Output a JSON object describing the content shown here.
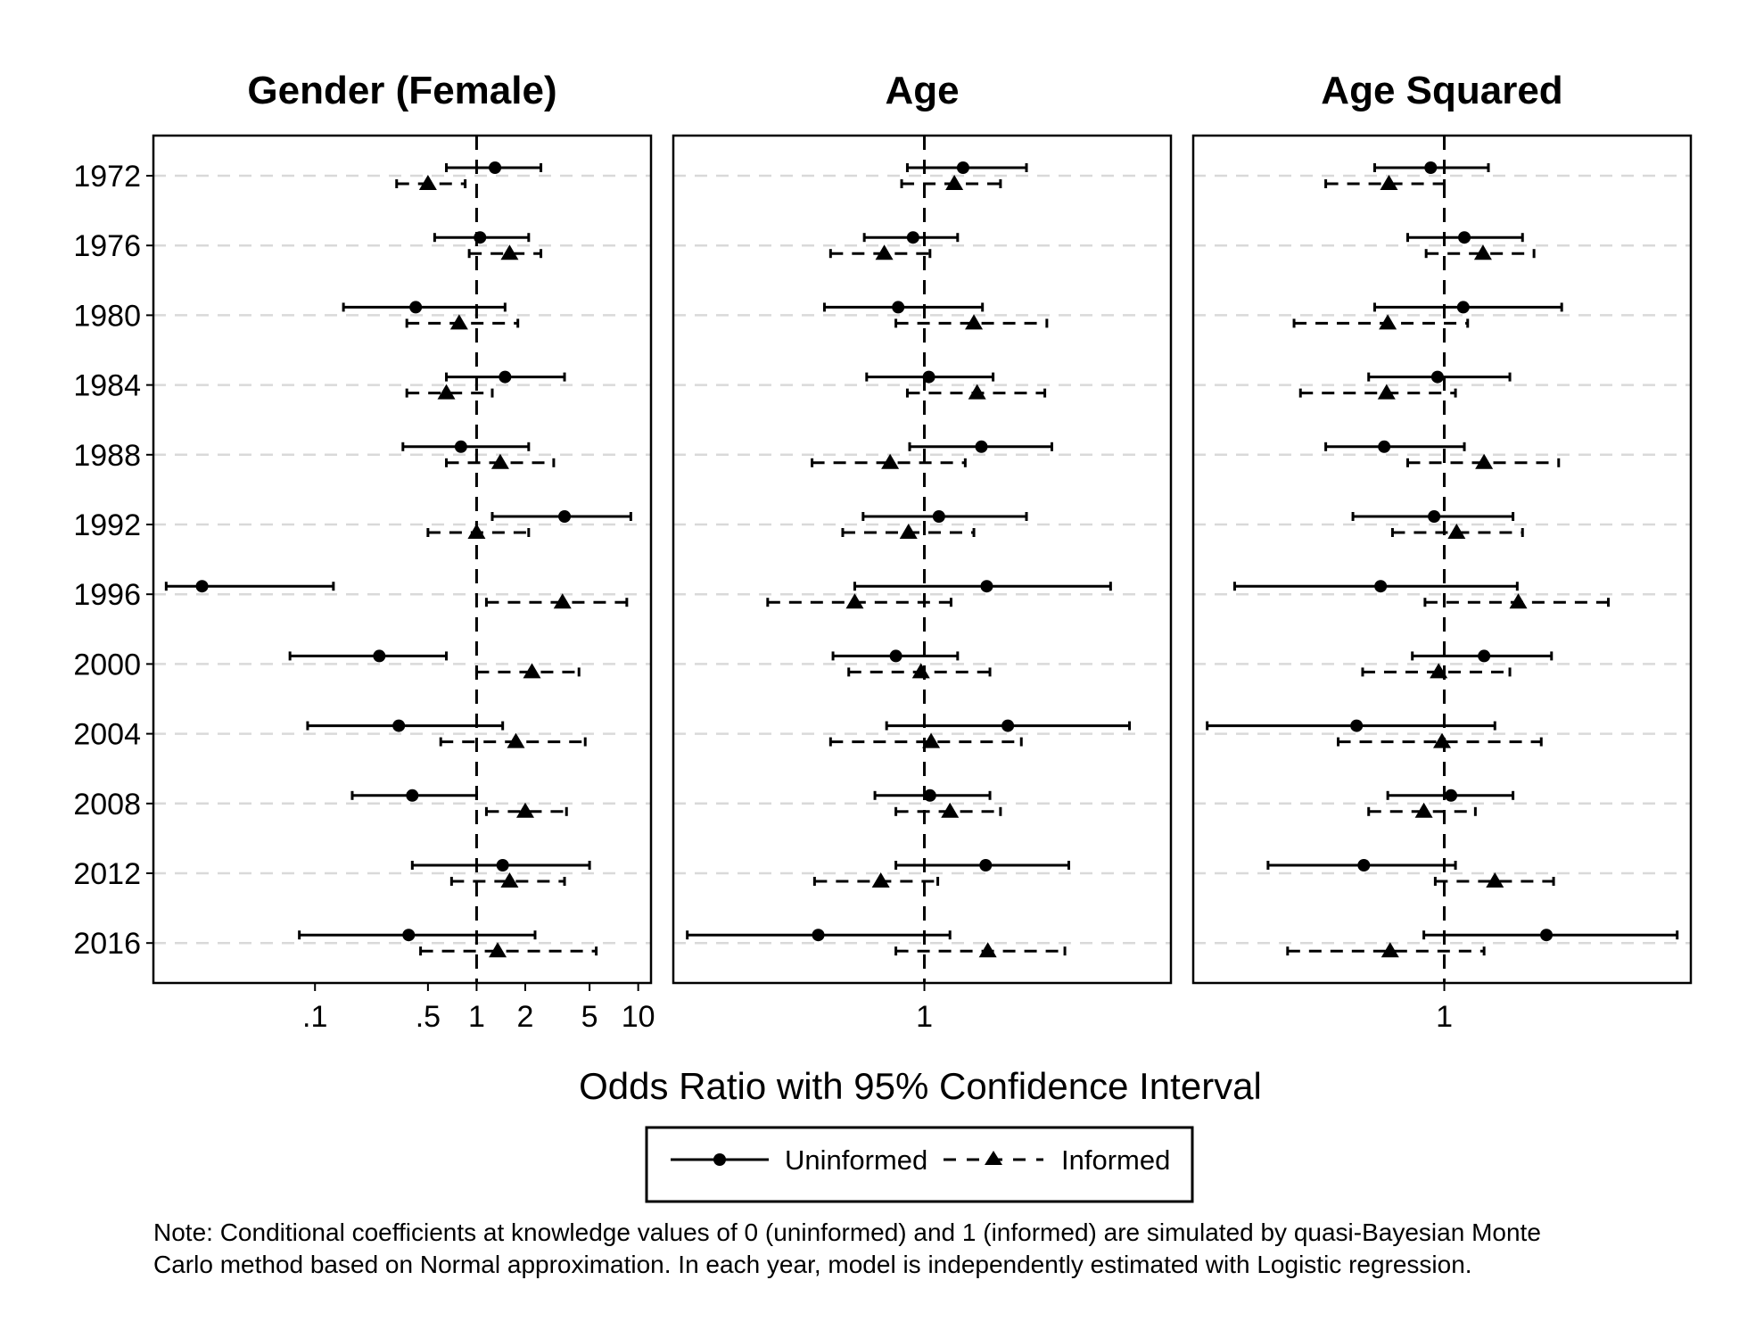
{
  "chart_data": {
    "type": "scatter",
    "subtype": "forest-plot",
    "xlabel": "Odds Ratio with 95% Confidence Interval",
    "years": [
      "1972",
      "1976",
      "1980",
      "1984",
      "1988",
      "1992",
      "1996",
      "2000",
      "2004",
      "2008",
      "2012",
      "2016"
    ],
    "legend": {
      "placement": "bottom",
      "entries": [
        "Uninformed",
        "Informed"
      ]
    },
    "grid": {
      "horizontal": true,
      "style": "dashed-light-gray"
    },
    "reference_line": 1,
    "panels": [
      {
        "title": "Gender (Female)",
        "scale": "log",
        "xlim": [
          0.01,
          12
        ],
        "xticks": [
          {
            "value": 0.1,
            "label": ".1"
          },
          {
            "value": 0.5,
            "label": ".5"
          },
          {
            "value": 1,
            "label": "1"
          },
          {
            "value": 2,
            "label": "2"
          },
          {
            "value": 5,
            "label": "5"
          },
          {
            "value": 10,
            "label": "10"
          }
        ],
        "series": [
          {
            "name": "Uninformed",
            "marker": "circle",
            "line": "solid",
            "points": [
              [
                1.3,
                0.65,
                2.5
              ],
              [
                1.05,
                0.55,
                2.1
              ],
              [
                0.42,
                0.15,
                1.5
              ],
              [
                1.5,
                0.65,
                3.5
              ],
              [
                0.8,
                0.35,
                2.1
              ],
              [
                3.5,
                1.25,
                9.0
              ],
              [
                0.02,
                0.012,
                0.13
              ],
              [
                0.25,
                0.07,
                0.65
              ],
              [
                0.33,
                0.09,
                1.45
              ],
              [
                0.4,
                0.17,
                1.0
              ],
              [
                1.45,
                0.4,
                5.0
              ],
              [
                0.38,
                0.08,
                2.3
              ]
            ]
          },
          {
            "name": "Informed",
            "marker": "triangle",
            "line": "dashed",
            "points": [
              [
                0.5,
                0.32,
                0.85
              ],
              [
                1.6,
                0.9,
                2.5
              ],
              [
                0.78,
                0.37,
                1.8
              ],
              [
                0.65,
                0.37,
                1.25
              ],
              [
                1.4,
                0.65,
                3.0
              ],
              [
                1.0,
                0.5,
                2.1
              ],
              [
                3.4,
                1.15,
                8.5
              ],
              [
                2.2,
                1.0,
                4.3
              ],
              [
                1.75,
                0.6,
                4.7
              ],
              [
                2.0,
                1.15,
                3.6
              ],
              [
                1.6,
                0.7,
                3.5
              ],
              [
                1.35,
                0.45,
                5.5
              ]
            ]
          }
        ]
      },
      {
        "title": "Age",
        "scale": "log",
        "xlim": [
          0.8,
          1.245
        ],
        "xticks": [
          {
            "value": 1,
            "label": "1"
          }
        ],
        "series": [
          {
            "name": "Uninformed",
            "marker": "circle",
            "line": "solid",
            "points": [
              [
                1.035,
                0.985,
                1.095
              ],
              [
                0.99,
                0.948,
                1.03
              ],
              [
                0.977,
                0.915,
                1.053
              ],
              [
                1.004,
                0.95,
                1.063
              ],
              [
                1.052,
                0.987,
                1.12
              ],
              [
                1.013,
                0.947,
                1.095
              ],
              [
                1.057,
                0.94,
                1.18
              ],
              [
                0.975,
                0.922,
                1.03
              ],
              [
                1.077,
                0.967,
                1.2
              ],
              [
                1.005,
                0.957,
                1.06
              ],
              [
                1.056,
                0.975,
                1.137
              ],
              [
                0.91,
                0.81,
                1.023
              ]
            ]
          },
          {
            "name": "Informed",
            "marker": "triangle",
            "line": "dashed",
            "points": [
              [
                1.027,
                0.98,
                1.07
              ],
              [
                0.965,
                0.92,
                1.005
              ],
              [
                1.045,
                0.975,
                1.115
              ],
              [
                1.048,
                0.985,
                1.113
              ],
              [
                0.97,
                0.905,
                1.037
              ],
              [
                0.986,
                0.93,
                1.045
              ],
              [
                0.94,
                0.87,
                1.024
              ],
              [
                0.997,
                0.935,
                1.06
              ],
              [
                1.006,
                0.92,
                1.09
              ],
              [
                1.023,
                0.975,
                1.07
              ],
              [
                0.962,
                0.907,
                1.012
              ],
              [
                1.058,
                0.975,
                1.133
              ]
            ]
          }
        ]
      },
      {
        "title": "Age Squared",
        "scale": "log",
        "xlim": [
          0.8,
          1.245
        ],
        "xticks": [
          {
            "value": 1,
            "label": "1"
          }
        ],
        "series": [
          {
            "name": "Uninformed",
            "marker": "circle",
            "line": "solid",
            "points": [
              [
                0.988,
                0.94,
                1.04
              ],
              [
                1.018,
                0.968,
                1.072
              ],
              [
                1.017,
                0.94,
                1.11
              ],
              [
                0.994,
                0.935,
                1.06
              ],
              [
                0.948,
                0.9,
                1.018
              ],
              [
                0.991,
                0.922,
                1.063
              ],
              [
                0.945,
                0.83,
                1.067
              ],
              [
                1.036,
                0.972,
                1.1
              ],
              [
                0.925,
                0.81,
                1.046
              ],
              [
                1.006,
                0.951,
                1.063
              ],
              [
                0.931,
                0.855,
                1.01
              ],
              [
                1.095,
                0.982,
                1.23
              ]
            ]
          },
          {
            "name": "Informed",
            "marker": "triangle",
            "line": "dashed",
            "points": [
              [
                0.952,
                0.9,
                1.0
              ],
              [
                1.035,
                0.984,
                1.083
              ],
              [
                0.951,
                0.875,
                1.021
              ],
              [
                0.95,
                0.88,
                1.01
              ],
              [
                1.036,
                0.968,
                1.107
              ],
              [
                1.011,
                0.955,
                1.072
              ],
              [
                1.068,
                0.983,
                1.157
              ],
              [
                0.995,
                0.93,
                1.06
              ],
              [
                0.998,
                0.91,
                1.09
              ],
              [
                0.982,
                0.935,
                1.028
              ],
              [
                1.046,
                0.992,
                1.102
              ],
              [
                0.953,
                0.87,
                1.036
              ]
            ]
          }
        ]
      }
    ]
  },
  "note": "Note: Conditional coefficients at knowledge values of 0 (uninformed) and 1 (informed) are simulated by quasi-Bayesian Monte\nCarlo method based on Normal approximation. In each year, model is independently estimated with Logistic regression."
}
